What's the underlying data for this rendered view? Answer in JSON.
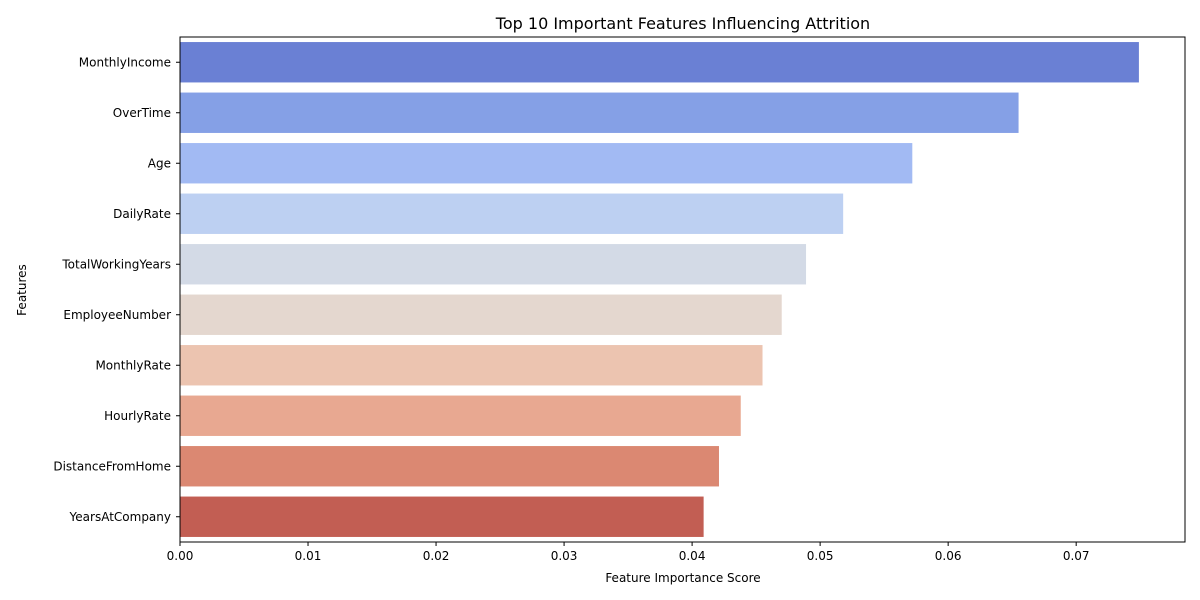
{
  "chart_data": {
    "type": "bar",
    "orientation": "horizontal",
    "title": "Top 10 Important Features Influencing Attrition",
    "xlabel": "Feature Importance Score",
    "ylabel": "Features",
    "xlim": [
      0,
      0.0785
    ],
    "xticks": [
      "0.00",
      "0.01",
      "0.02",
      "0.03",
      "0.04",
      "0.05",
      "0.06",
      "0.07"
    ],
    "grid": false,
    "categories": [
      "MonthlyIncome",
      "OverTime",
      "Age",
      "DailyRate",
      "TotalWorkingYears",
      "EmployeeNumber",
      "MonthlyRate",
      "HourlyRate",
      "DistanceFromHome",
      "YearsAtCompany"
    ],
    "values": [
      0.0749,
      0.0655,
      0.0572,
      0.0518,
      0.0489,
      0.047,
      0.0455,
      0.0438,
      0.0421,
      0.0409
    ],
    "colors": [
      "#6a80d4",
      "#85a0e6",
      "#a2baf3",
      "#bdd0f2",
      "#d3dae6",
      "#e4d7cf",
      "#ecc4b0",
      "#e8a891",
      "#db8872",
      "#c25e53"
    ]
  }
}
